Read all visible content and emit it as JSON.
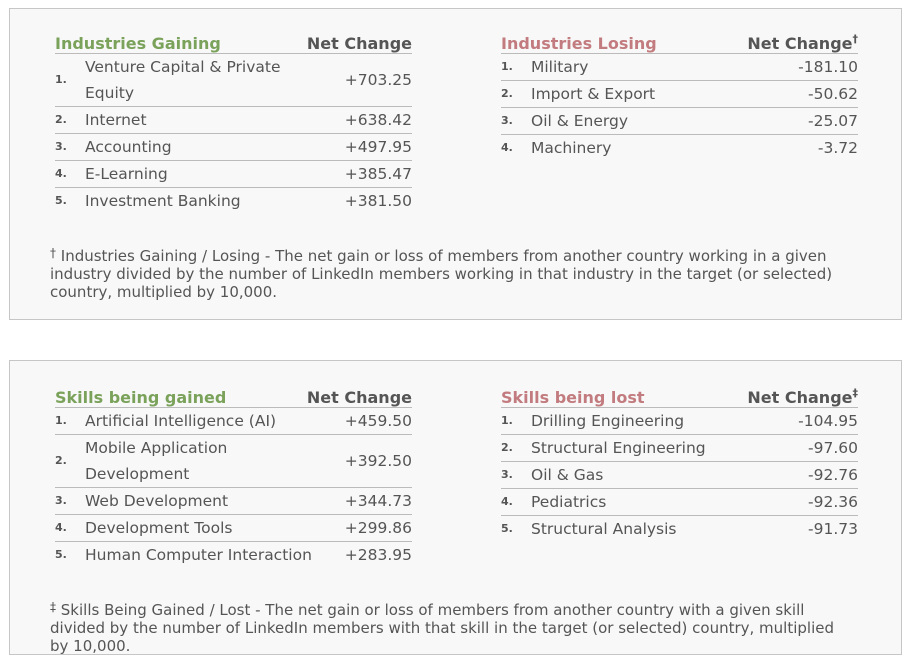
{
  "industries": {
    "gaining": {
      "title": "Industries Gaining",
      "value_header": "Net Change",
      "rows": [
        {
          "rank": "1.",
          "name": "Venture Capital & Private Equity",
          "value": "+703.25"
        },
        {
          "rank": "2.",
          "name": "Internet",
          "value": "+638.42"
        },
        {
          "rank": "3.",
          "name": "Accounting",
          "value": "+497.95"
        },
        {
          "rank": "4.",
          "name": "E-Learning",
          "value": "+385.47"
        },
        {
          "rank": "5.",
          "name": "Investment Banking",
          "value": "+381.50"
        }
      ]
    },
    "losing": {
      "title": "Industries Losing",
      "value_header": "Net Change",
      "mark": "†",
      "rows": [
        {
          "rank": "1.",
          "name": "Military",
          "value": "-181.10"
        },
        {
          "rank": "2.",
          "name": "Import & Export",
          "value": "-50.62"
        },
        {
          "rank": "3.",
          "name": "Oil & Energy",
          "value": "-25.07"
        },
        {
          "rank": "4.",
          "name": "Machinery",
          "value": "-3.72"
        }
      ]
    },
    "note": {
      "mark": "†",
      "text": "Industries Gaining / Losing - The net gain or loss of members from another country working in a given industry divided by the number of LinkedIn members working in that industry in the target (or selected) country, multiplied by 10,000."
    }
  },
  "skills": {
    "gained": {
      "title": "Skills being gained",
      "value_header": "Net Change",
      "rows": [
        {
          "rank": "1.",
          "name": "Artificial Intelligence (AI)",
          "value": "+459.50"
        },
        {
          "rank": "2.",
          "name": "Mobile Application Development",
          "value": "+392.50"
        },
        {
          "rank": "3.",
          "name": "Web Development",
          "value": "+344.73"
        },
        {
          "rank": "4.",
          "name": "Development Tools",
          "value": "+299.86"
        },
        {
          "rank": "5.",
          "name": "Human Computer Interaction",
          "value": "+283.95"
        }
      ]
    },
    "lost": {
      "title": "Skills being lost",
      "value_header": "Net Change",
      "mark": "‡",
      "rows": [
        {
          "rank": "1.",
          "name": "Drilling Engineering",
          "value": "-104.95"
        },
        {
          "rank": "2.",
          "name": "Structural Engineering",
          "value": "-97.60"
        },
        {
          "rank": "3.",
          "name": "Oil & Gas",
          "value": "-92.76"
        },
        {
          "rank": "4.",
          "name": "Pediatrics",
          "value": "-92.36"
        },
        {
          "rank": "5.",
          "name": "Structural Analysis",
          "value": "-91.73"
        }
      ]
    },
    "note": {
      "mark": "‡",
      "text": "Skills Being Gained / Lost - The net gain or loss of members from another country with a given skill divided by the number of LinkedIn members with that skill in the target (or selected) country, multiplied by 10,000."
    }
  },
  "colors": {
    "gain_title": "#7aa25a",
    "loss_title": "#c27b7e",
    "panel_bg": "#f8f8f8",
    "panel_border": "#c6c6c6"
  }
}
